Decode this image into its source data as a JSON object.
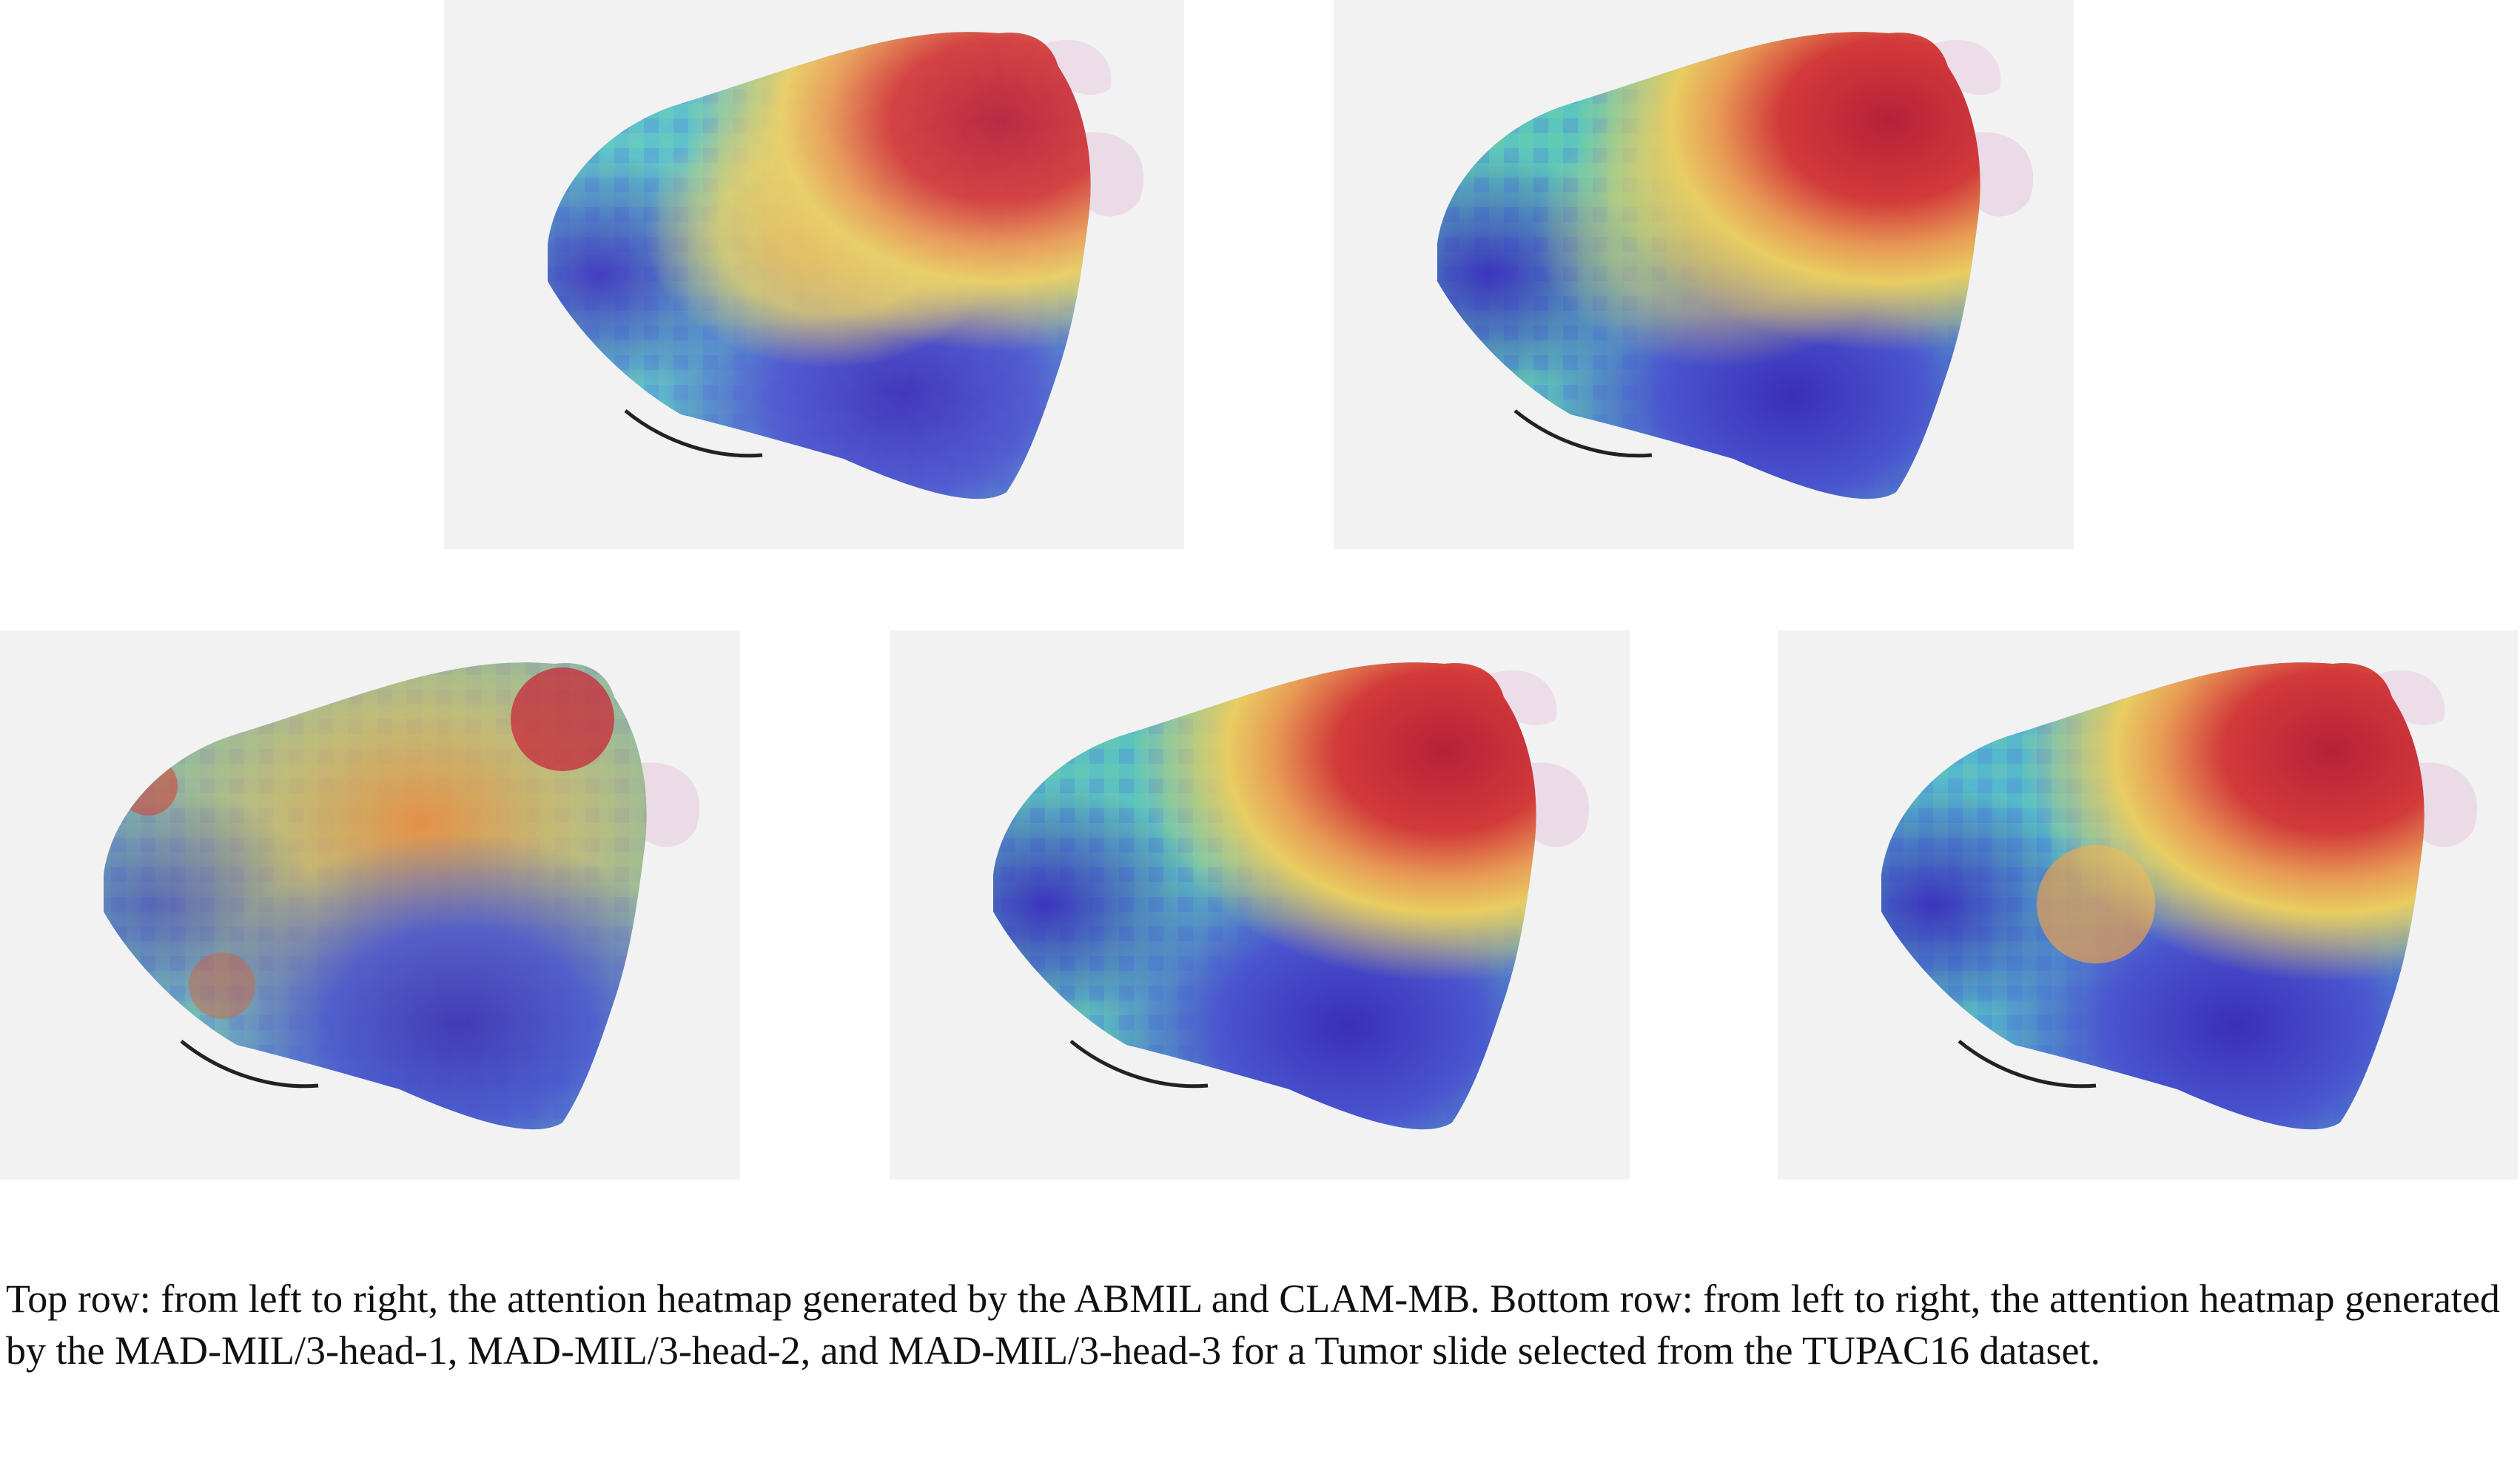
{
  "figure": {
    "caption": "Top row: from left to right, the attention heatmap generated by the ABMIL and CLAM-MB. Bottom row: from left to right, the attention heatmap generated by the MAD-MIL/3-head-1, MAD-MIL/3-head-2, and MAD-MIL/3-head-3 for a Tumor slide selected from the TUPAC16 dataset.",
    "panels": [
      {
        "id": "abmil",
        "model": "ABMIL",
        "row": "top",
        "hotspot": "upper-right tumor region"
      },
      {
        "id": "clam",
        "model": "CLAM-MB",
        "row": "top",
        "hotspot": "upper-right tumor region"
      },
      {
        "id": "head-1",
        "model": "MAD-MIL/3-head-1",
        "row": "bottom",
        "hotspot": "diffuse"
      },
      {
        "id": "head-2",
        "model": "MAD-MIL/3-head-2",
        "row": "bottom",
        "hotspot": "upper-right tumor region"
      },
      {
        "id": "head-3",
        "model": "MAD-MIL/3-head-3",
        "row": "bottom",
        "hotspot": "upper-right tumor region"
      }
    ],
    "colormap": {
      "low": "#3a2fb8",
      "mid_low": "#3f8fd6",
      "mid": "#58c8c0",
      "mid_high": "#e8c55a",
      "high": "#c8283a"
    }
  }
}
